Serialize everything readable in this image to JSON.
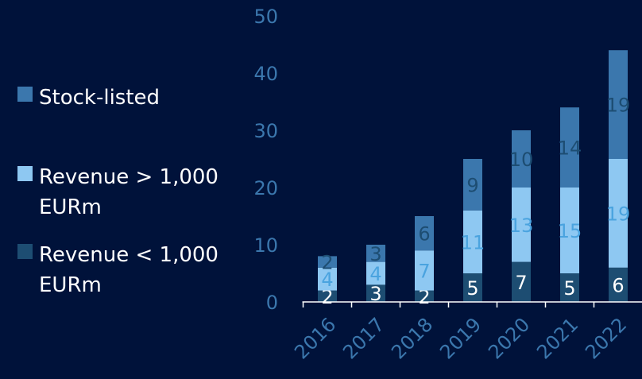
{
  "chart_data": {
    "type": "bar",
    "stacked": true,
    "categories": [
      "2016",
      "2017",
      "2018",
      "2019",
      "2020",
      "2021",
      "2022"
    ],
    "series": [
      {
        "name": "Revenue < 1,000 EURm",
        "color": "#1d4d72",
        "label_color": "#ffffff",
        "values": [
          2,
          3,
          2,
          5,
          7,
          5,
          6
        ]
      },
      {
        "name": "Revenue > 1,000 EURm",
        "color": "#8ec8f2",
        "label_color": "#4aa3df",
        "values": [
          4,
          4,
          7,
          11,
          13,
          15,
          19
        ]
      },
      {
        "name": "Stock-listed",
        "color": "#3b77ad",
        "label_color": "#1d4d72",
        "values": [
          2,
          3,
          6,
          9,
          10,
          14,
          19
        ]
      }
    ],
    "yticks": [
      "0",
      "10",
      "20",
      "30",
      "40",
      "50"
    ],
    "ylim": [
      0,
      50
    ],
    "legend_order": [
      "Stock-listed",
      "Revenue > 1,000 EURm",
      "Revenue < 1,000 EURm"
    ],
    "legend_position": "left",
    "grid": false,
    "title": "",
    "xlabel": "",
    "ylabel": ""
  },
  "legend": {
    "items": [
      {
        "label": "Stock-listed",
        "color": "#3b77ad"
      },
      {
        "label": "Revenue > 1,000 EURm",
        "color": "#8ec8f2"
      },
      {
        "label": "Revenue < 1,000 EURm",
        "color": "#1d4d72"
      }
    ]
  },
  "colors": {
    "background": "#00123a",
    "axis": "#ffffff",
    "tick_text": "#3b77ad"
  }
}
